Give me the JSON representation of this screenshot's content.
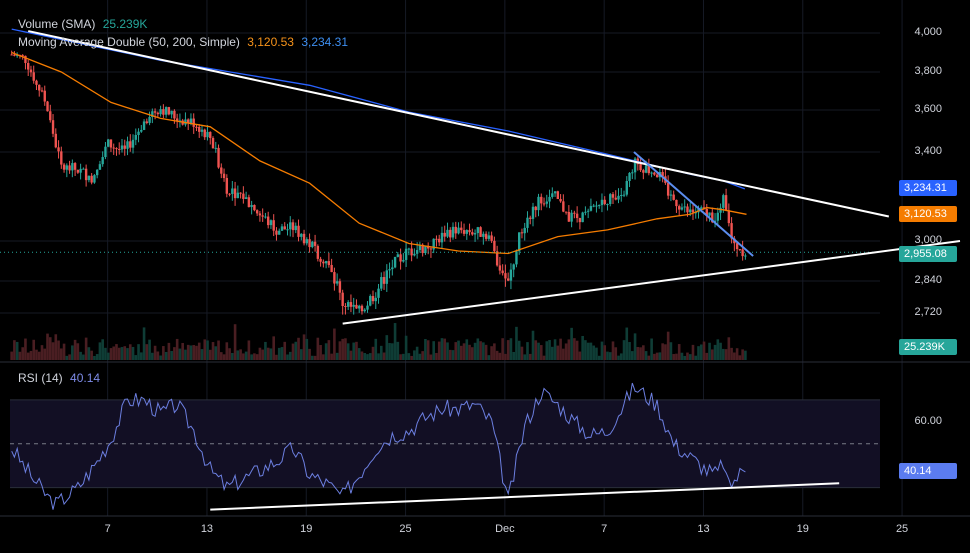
{
  "legend": {
    "volume_name": "Volume (SMA)",
    "volume_value": "25.239K",
    "ma_name": "Moving Average Double (50, 200, Simple)",
    "ma_fast_value": "3,120.53",
    "ma_slow_value": "3,234.31",
    "rsi_name": "RSI (14)",
    "rsi_value": "40.14"
  },
  "badges": {
    "ma_slow": "3,234.31",
    "ma_fast": "3,120.53",
    "last_price": "2,955.08",
    "volume": "25.239K",
    "rsi": "40.14"
  },
  "colors": {
    "up": "#26a69a",
    "down": "#ef5350",
    "ma_fast": "#f57c00",
    "ma_slow": "#2962ff",
    "rsi": "#7e57c2",
    "trendline": "#ffffff",
    "blue_trendline": "#5b8def"
  },
  "chart_data": {
    "type": "candlestick",
    "price_axis": {
      "ticks": [
        {
          "value": 4000,
          "label": "4,000"
        },
        {
          "value": 3800,
          "label": "3,800"
        },
        {
          "value": 3600,
          "label": "3,600"
        },
        {
          "value": 3400,
          "label": "3,400"
        },
        {
          "value": 3000,
          "label": "3,000"
        },
        {
          "value": 2840,
          "label": "2,840"
        },
        {
          "value": 2720,
          "label": "2,720"
        }
      ],
      "ylim": [
        2650,
        4050
      ]
    },
    "rsi_axis": {
      "ticks": [
        {
          "value": 60,
          "label": "60.00"
        }
      ],
      "levels": [
        70,
        50,
        30
      ],
      "ylim": [
        18,
        80
      ]
    },
    "date_ticks": [
      {
        "day": 7,
        "label": "7"
      },
      {
        "day": 13,
        "label": "13"
      },
      {
        "day": 19,
        "label": "19"
      },
      {
        "day": 25,
        "label": "25"
      },
      {
        "day": 31,
        "label": "Dec"
      },
      {
        "day": 37,
        "label": "7"
      },
      {
        "day": 43,
        "label": "13"
      },
      {
        "day": 49,
        "label": "19"
      },
      {
        "day": 55,
        "label": "25"
      }
    ],
    "xlim": [
      1.1,
      58.5
    ],
    "anchors": [
      [
        1.2,
        3890
      ],
      [
        2,
        3870
      ],
      [
        3.2,
        3650
      ],
      [
        4.2,
        3330
      ],
      [
        5.2,
        3320
      ],
      [
        6.2,
        3280
      ],
      [
        7,
        3440
      ],
      [
        8,
        3400
      ],
      [
        9.5,
        3580
      ],
      [
        10.2,
        3610
      ],
      [
        11.2,
        3560
      ],
      [
        12.2,
        3540
      ],
      [
        13.2,
        3470
      ],
      [
        14.2,
        3240
      ],
      [
        15.2,
        3200
      ],
      [
        16.2,
        3120
      ],
      [
        17.2,
        3050
      ],
      [
        18.2,
        3060
      ],
      [
        19.2,
        2990
      ],
      [
        20.2,
        2920
      ],
      [
        21.2,
        2760
      ],
      [
        22.2,
        2720
      ],
      [
        23.2,
        2800
      ],
      [
        24.2,
        2900
      ],
      [
        25.2,
        2960
      ],
      [
        26.5,
        2980
      ],
      [
        27.5,
        3040
      ],
      [
        28.5,
        3050
      ],
      [
        30,
        3030
      ],
      [
        30.5,
        2920
      ],
      [
        31.2,
        2830
      ],
      [
        32,
        3050
      ],
      [
        33,
        3180
      ],
      [
        34,
        3200
      ],
      [
        35,
        3100
      ],
      [
        36,
        3120
      ],
      [
        37,
        3190
      ],
      [
        38,
        3180
      ],
      [
        38.8,
        3350
      ],
      [
        39.5,
        3330
      ],
      [
        40.3,
        3300
      ],
      [
        41,
        3200
      ],
      [
        42,
        3130
      ],
      [
        43,
        3130
      ],
      [
        43.8,
        3100
      ],
      [
        44.2,
        3180
      ],
      [
        44.8,
        2990
      ],
      [
        45.6,
        2955
      ]
    ],
    "ma_fast": [
      [
        1.2,
        3900
      ],
      [
        4.2,
        3800
      ],
      [
        7.2,
        3640
      ],
      [
        10.2,
        3560
      ],
      [
        13.2,
        3520
      ],
      [
        16.2,
        3360
      ],
      [
        19.2,
        3260
      ],
      [
        22.2,
        3080
      ],
      [
        25.2,
        2990
      ],
      [
        28.2,
        2960
      ],
      [
        31.2,
        2950
      ],
      [
        34.2,
        3020
      ],
      [
        37.2,
        3050
      ],
      [
        40.2,
        3100
      ],
      [
        42.2,
        3120
      ],
      [
        43.2,
        3150
      ],
      [
        44.2,
        3140
      ],
      [
        45.6,
        3120
      ]
    ],
    "ma_slow": [
      [
        1.2,
        4020
      ],
      [
        10.2,
        3860
      ],
      [
        19.2,
        3730
      ],
      [
        25.2,
        3590
      ],
      [
        31.2,
        3500
      ],
      [
        37.2,
        3390
      ],
      [
        42.2,
        3300
      ],
      [
        44.2,
        3270
      ],
      [
        45.5,
        3234
      ]
    ],
    "trendlines": [
      {
        "color": "white",
        "from": [
          2.2,
          4010
        ],
        "to": [
          54.2,
          3110
        ]
      },
      {
        "color": "white",
        "from": [
          21.2,
          2680
        ],
        "to": [
          58.5,
          3000
        ]
      },
      {
        "color": "blue",
        "from": [
          38.8,
          3400
        ],
        "to": [
          46,
          2940
        ]
      }
    ],
    "rsi_anchors": [
      [
        1.2,
        48
      ],
      [
        2.5,
        34
      ],
      [
        3.8,
        22
      ],
      [
        5.2,
        30
      ],
      [
        6.2,
        40
      ],
      [
        7.2,
        52
      ],
      [
        8.2,
        70
      ],
      [
        9.2,
        70
      ],
      [
        10.2,
        64
      ],
      [
        11.2,
        68
      ],
      [
        12.2,
        56
      ],
      [
        13.2,
        38
      ],
      [
        14.2,
        30
      ],
      [
        15.2,
        34
      ],
      [
        16.2,
        38
      ],
      [
        17.2,
        42
      ],
      [
        18.2,
        48
      ],
      [
        19.2,
        36
      ],
      [
        20.2,
        32
      ],
      [
        21.2,
        26
      ],
      [
        22.2,
        36
      ],
      [
        23.2,
        48
      ],
      [
        24.2,
        54
      ],
      [
        25.2,
        56
      ],
      [
        26.2,
        62
      ],
      [
        27.2,
        66
      ],
      [
        28.2,
        66
      ],
      [
        29.2,
        68
      ],
      [
        30.2,
        60
      ],
      [
        31.2,
        24
      ],
      [
        32.2,
        58
      ],
      [
        33.2,
        74
      ],
      [
        34.2,
        68
      ],
      [
        35.2,
        60
      ],
      [
        36.2,
        54
      ],
      [
        37.2,
        56
      ],
      [
        38.2,
        68
      ],
      [
        38.8,
        76
      ],
      [
        39.2,
        74
      ],
      [
        40.2,
        68
      ],
      [
        41.2,
        50
      ],
      [
        42.2,
        44
      ],
      [
        43.2,
        38
      ],
      [
        43.8,
        36
      ],
      [
        44.2,
        42
      ],
      [
        44.5,
        30
      ],
      [
        45.6,
        40
      ]
    ],
    "rsi_trendline": {
      "from": [
        13.2,
        20
      ],
      "to": [
        51.2,
        32
      ]
    }
  }
}
